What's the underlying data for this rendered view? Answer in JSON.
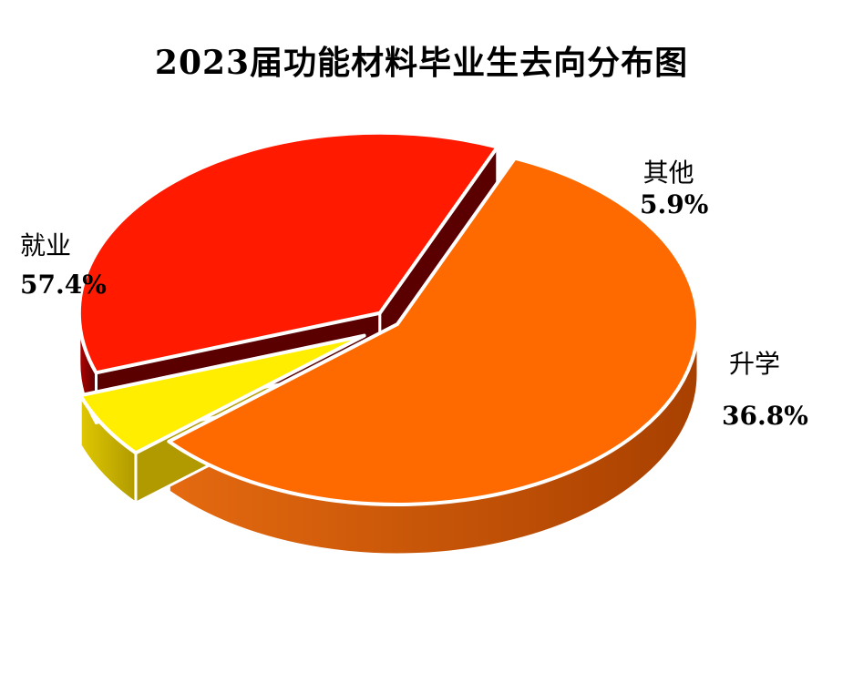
{
  "chart_data": {
    "type": "pie",
    "title": "2023届功能材料毕业生去向分布图",
    "categories": [
      "就业",
      "其他",
      "升学"
    ],
    "values": [
      57.4,
      5.9,
      36.8
    ],
    "value_labels": [
      "57.4%",
      "5.9%",
      "36.8%"
    ],
    "colors": {
      "top": [
        "#ff6a00",
        "#ffee00",
        "#ff1a00"
      ],
      "side_light": [
        "#e56a10",
        "#e0c800",
        "#b30000"
      ],
      "side_dark": [
        "#a84000",
        "#b09a00",
        "#5a0000"
      ]
    },
    "legend": "none",
    "style": "3d-exploded"
  }
}
